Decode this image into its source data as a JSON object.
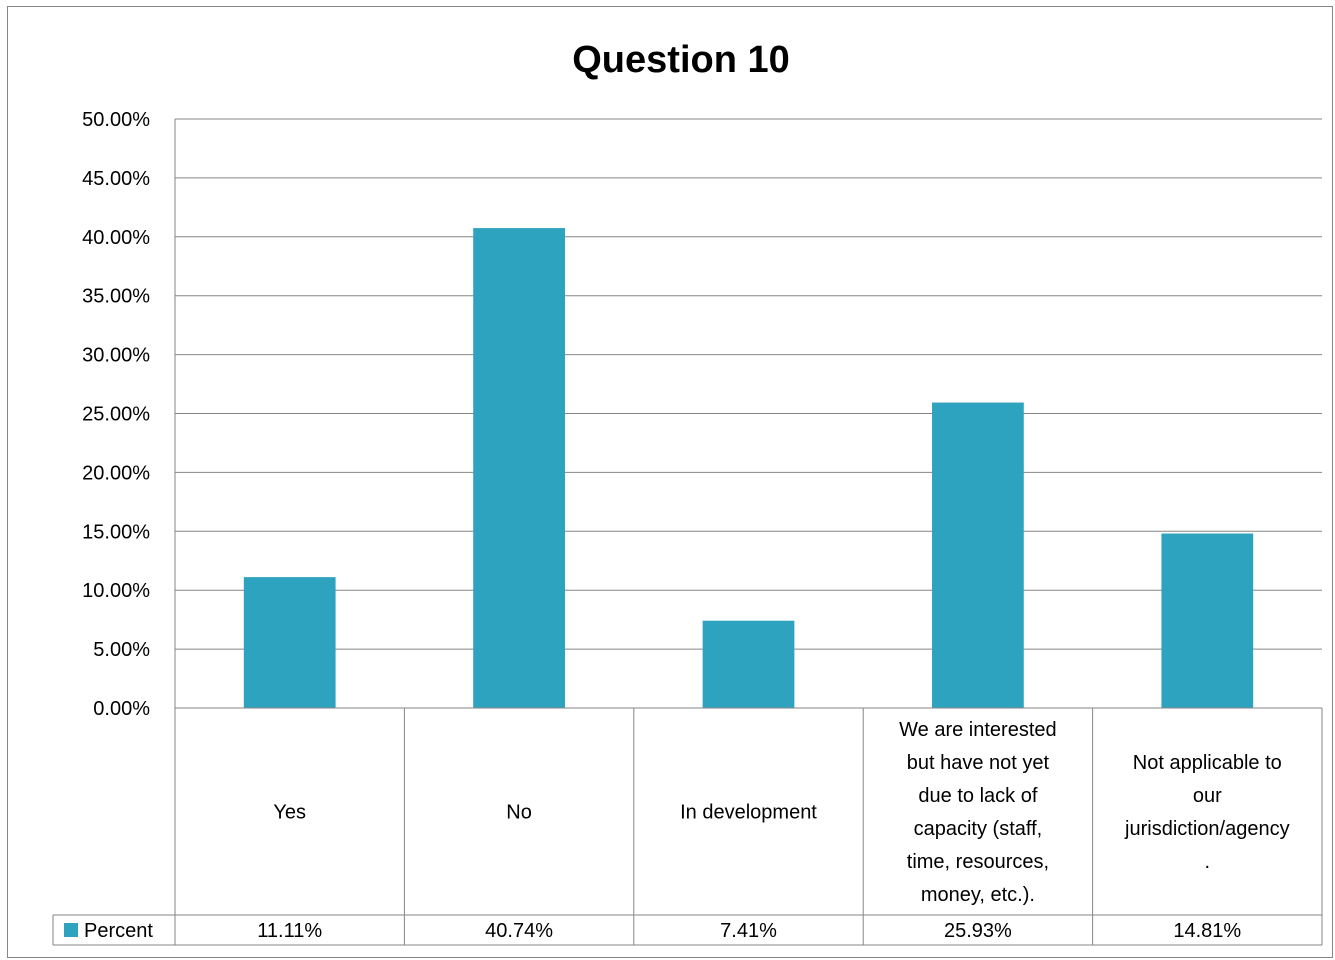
{
  "chart_data": {
    "type": "bar",
    "title": "Question 10",
    "categories": [
      "Yes",
      "No",
      "In development",
      "We are interested but have not yet due to lack of capacity (staff, time, resources, money, etc.).",
      "Not applicable to our jurisdiction/agency."
    ],
    "category_label_lines": [
      [
        "Yes"
      ],
      [
        "No"
      ],
      [
        "In development"
      ],
      [
        "We are interested",
        "but have not yet",
        "due to lack of",
        "capacity (staff,",
        "time, resources,",
        "money, etc.)."
      ],
      [
        "Not applicable to",
        "our",
        "jurisdiction/agency",
        "."
      ]
    ],
    "series": [
      {
        "name": "Percent",
        "values": [
          11.11,
          40.74,
          7.41,
          25.93,
          14.81
        ],
        "value_labels": [
          "11.11%",
          "40.74%",
          "7.41%",
          "25.93%",
          "14.81%"
        ],
        "color": "#2ea3bf"
      }
    ],
    "ylim": [
      0,
      50
    ],
    "y_ticks": [
      "0.00%",
      "5.00%",
      "10.00%",
      "15.00%",
      "20.00%",
      "25.00%",
      "30.00%",
      "35.00%",
      "40.00%",
      "45.00%",
      "50.00%"
    ],
    "grid": true,
    "data_table": true,
    "legend": "data table"
  }
}
